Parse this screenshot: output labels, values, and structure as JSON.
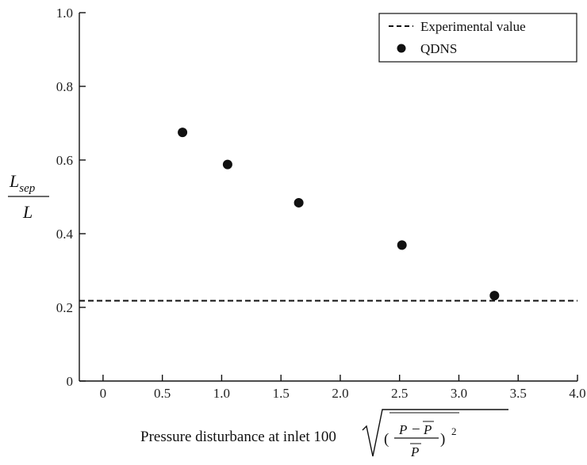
{
  "chart_data": {
    "type": "scatter",
    "xlabel": "Pressure disturbance at inlet 100",
    "xlabel_formula": {
      "numerator_left": "P",
      "minus": "−",
      "numerator_right": "P",
      "denominator": "P",
      "exponent": "2"
    },
    "ylabel": {
      "main": "L",
      "subscript": "sep",
      "denominator": "L"
    },
    "xlim": [
      -0.2,
      4.0
    ],
    "ylim": [
      0,
      1.0
    ],
    "xticks": [
      0,
      0.5,
      1.0,
      1.5,
      2.0,
      2.5,
      3.0,
      3.5,
      4.0
    ],
    "xtick_labels": [
      "0",
      "0.5",
      "1.0",
      "1.5",
      "2.0",
      "2.5",
      "3.0",
      "3.5",
      "4.0"
    ],
    "yticks": [
      0,
      0.2,
      0.4,
      0.6,
      0.8,
      1.0
    ],
    "ytick_labels": [
      "0",
      "0.2",
      "0.4",
      "0.6",
      "0.8",
      "1.0"
    ],
    "series": [
      {
        "name": "QDNS",
        "kind": "points",
        "color": "#111111",
        "x": [
          0.67,
          1.05,
          1.65,
          2.52,
          3.3
        ],
        "y": [
          0.675,
          0.588,
          0.484,
          0.369,
          0.232
        ]
      },
      {
        "name": "Experimental value",
        "kind": "hline",
        "color": "#111111",
        "y": 0.218
      }
    ],
    "legend": {
      "position": "top-right",
      "entries": [
        "Experimental value",
        "QDNS"
      ]
    },
    "grid": false
  }
}
